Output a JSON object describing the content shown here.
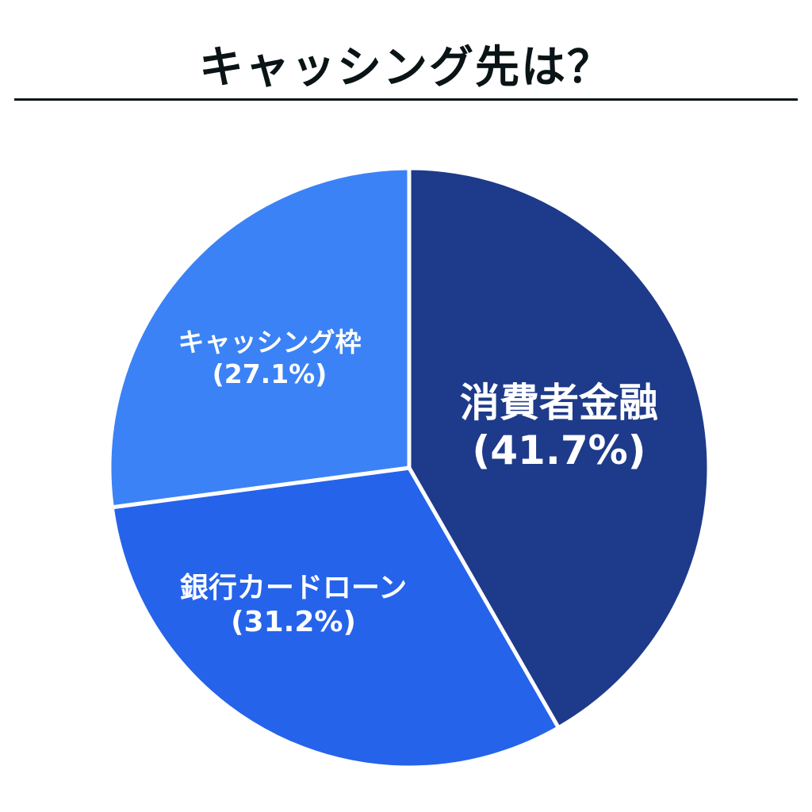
{
  "title": "キャッシング先は？",
  "chart_data": {
    "type": "pie",
    "title": "キャッシング先は？",
    "categories": [
      "消費者金融",
      "銀行カードローン",
      "キャッシング枠"
    ],
    "values": [
      41.7,
      31.2,
      27.1
    ],
    "colors": [
      "#1e3a8a",
      "#2563eb",
      "#3b82f6"
    ],
    "labels": [
      "(41.7%)",
      "(31.2%)",
      "(27.1%)"
    ],
    "start_angle": "12 o'clock",
    "direction": "clockwise",
    "legend": "none (inline labels)"
  },
  "slices": [
    {
      "name": "消費者金融",
      "pct": "(41.7%)"
    },
    {
      "name": "銀行カードローン",
      "pct": "(31.2%)"
    },
    {
      "name": "キャッシング枠",
      "pct": "(27.1%)"
    }
  ]
}
